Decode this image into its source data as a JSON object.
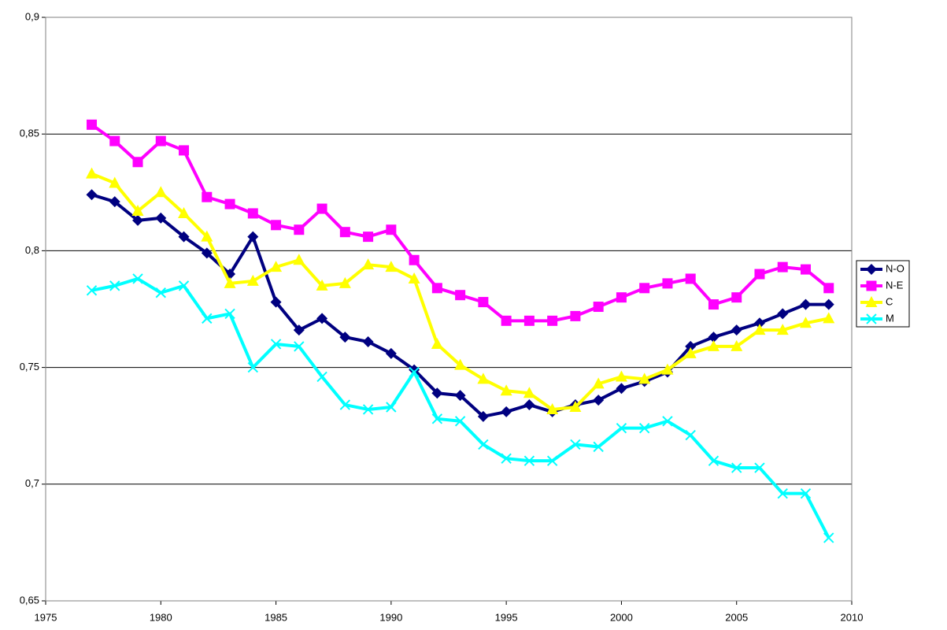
{
  "chart_data": {
    "type": "line",
    "x": [
      1977,
      1978,
      1979,
      1980,
      1981,
      1982,
      1983,
      1984,
      1985,
      1986,
      1987,
      1988,
      1989,
      1990,
      1991,
      1992,
      1993,
      1994,
      1995,
      1996,
      1997,
      1998,
      1999,
      2000,
      2001,
      2002,
      2003,
      2004,
      2005,
      2006,
      2007,
      2008,
      2009
    ],
    "series": [
      {
        "name": "N-O",
        "color": "#000080",
        "marker": "diamond",
        "values": [
          0.824,
          0.821,
          0.813,
          0.814,
          0.806,
          0.799,
          0.79,
          0.806,
          0.778,
          0.766,
          0.771,
          0.763,
          0.761,
          0.756,
          0.749,
          0.739,
          0.738,
          0.729,
          0.731,
          0.734,
          0.731,
          0.734,
          0.736,
          0.741,
          0.744,
          0.748,
          0.759,
          0.763,
          0.766,
          0.769,
          0.773,
          0.777,
          0.777
        ]
      },
      {
        "name": "N-E",
        "color": "#ff00ff",
        "marker": "square",
        "values": [
          0.854,
          0.847,
          0.838,
          0.847,
          0.843,
          0.823,
          0.82,
          0.816,
          0.811,
          0.809,
          0.818,
          0.808,
          0.806,
          0.809,
          0.796,
          0.784,
          0.781,
          0.778,
          0.77,
          0.77,
          0.77,
          0.772,
          0.776,
          0.78,
          0.784,
          0.786,
          0.788,
          0.777,
          0.78,
          0.79,
          0.793,
          0.792,
          0.784
        ]
      },
      {
        "name": "C",
        "color": "#ffff00",
        "marker": "triangle",
        "values": [
          0.833,
          0.829,
          0.817,
          0.825,
          0.816,
          0.806,
          0.786,
          0.787,
          0.793,
          0.796,
          0.785,
          0.786,
          0.794,
          0.793,
          0.788,
          0.76,
          0.751,
          0.745,
          0.74,
          0.739,
          0.732,
          0.733,
          0.743,
          0.746,
          0.745,
          0.749,
          0.756,
          0.759,
          0.759,
          0.766,
          0.766,
          0.769,
          0.771
        ]
      },
      {
        "name": "M",
        "color": "#00ffff",
        "marker": "x",
        "values": [
          0.783,
          0.785,
          0.788,
          0.782,
          0.785,
          0.771,
          0.773,
          0.75,
          0.76,
          0.759,
          0.746,
          0.734,
          0.732,
          0.733,
          0.748,
          0.728,
          0.727,
          0.717,
          0.711,
          0.71,
          0.71,
          0.717,
          0.716,
          0.724,
          0.724,
          0.727,
          0.721,
          0.71,
          0.707,
          0.707,
          0.696,
          0.696,
          0.677
        ]
      }
    ],
    "xlim": [
      1975,
      2010
    ],
    "xticks": [
      1975,
      1980,
      1985,
      1990,
      1995,
      2000,
      2005,
      2010
    ],
    "ylim": [
      0.65,
      0.9
    ],
    "yticks": [
      {
        "value": 0.65,
        "label": "0,65"
      },
      {
        "value": 0.7,
        "label": "0,7"
      },
      {
        "value": 0.75,
        "label": "0,75"
      },
      {
        "value": 0.8,
        "label": "0,8"
      },
      {
        "value": 0.85,
        "label": "0,85"
      },
      {
        "value": 0.9,
        "label": "0,9"
      }
    ],
    "grid": true,
    "legend": "right"
  }
}
